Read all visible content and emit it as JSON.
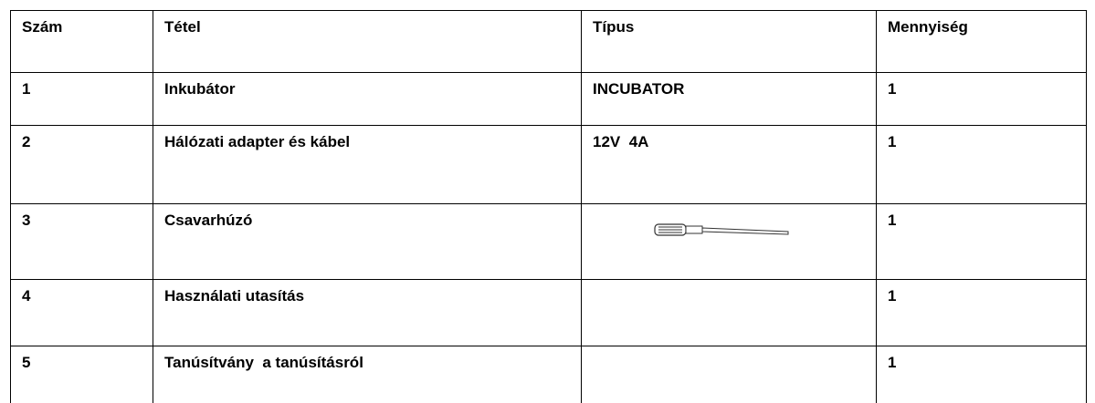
{
  "table": {
    "header": [
      "Szám",
      "Tétel",
      "Típus",
      "Mennyiség"
    ],
    "rows": [
      [
        "1",
        "Inkubátor",
        "INCUBATOR",
        "1"
      ],
      [
        "2",
        "Hálózati adapter és kábel",
        "12V  4A",
        "1"
      ],
      [
        "3",
        "Csavarhúzó",
        "",
        "1"
      ],
      [
        "4",
        "Használati utasítás",
        "",
        "1"
      ],
      [
        "5",
        "Tanúsítvány  a tanúsításról",
        "",
        "1"
      ]
    ]
  }
}
